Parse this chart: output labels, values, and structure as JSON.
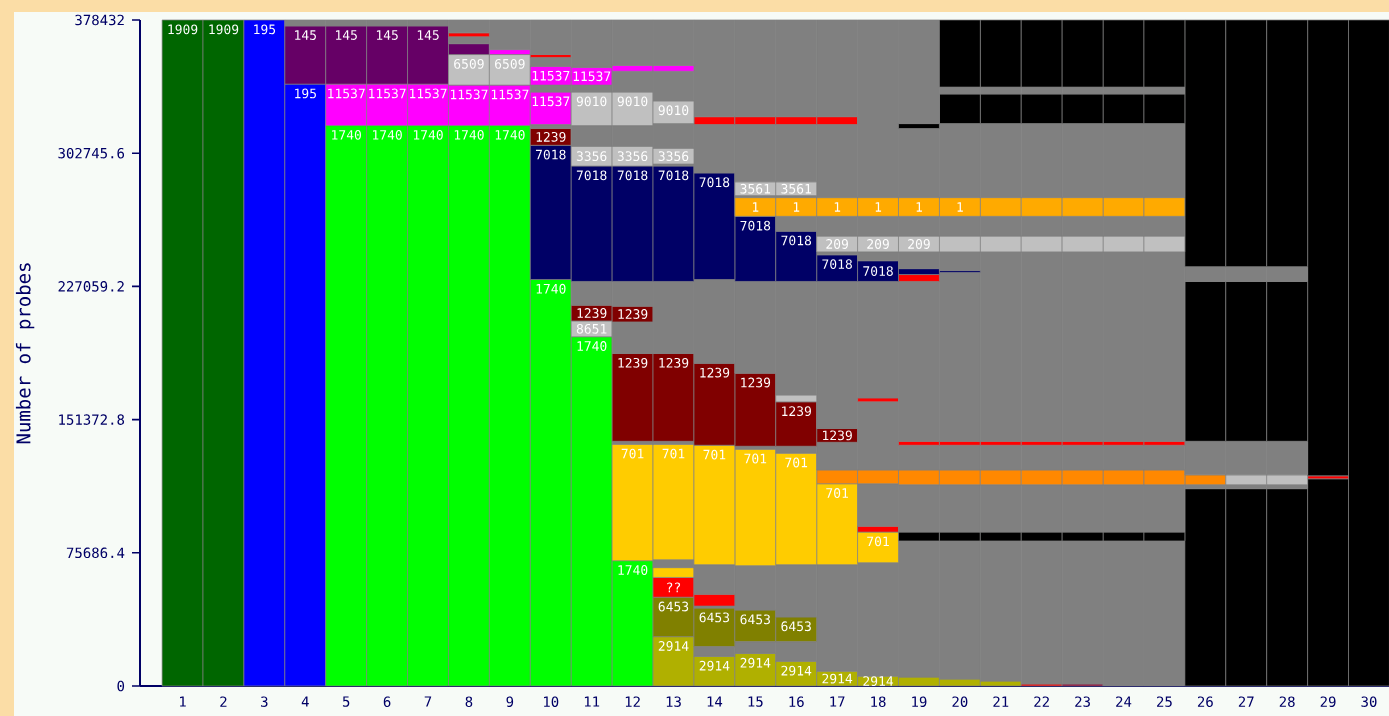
{
  "chart_data": {
    "type": "bar",
    "stacked": true,
    "ylabel": "Number of probes",
    "categories": [
      "1",
      "2",
      "3",
      "4",
      "5",
      "6",
      "7",
      "8",
      "9",
      "10",
      "11",
      "12",
      "13",
      "14",
      "15",
      "16",
      "17",
      "18",
      "19",
      "20",
      "21",
      "22",
      "23",
      "24",
      "25",
      "26",
      "27",
      "28",
      "29",
      "30"
    ],
    "ylim": [
      0,
      378432
    ],
    "yticks": [
      0,
      75686.4,
      151372.8,
      227059.2,
      302745.6,
      378432
    ],
    "series": [
      {
        "values": [
          378432,
          378432,
          378432,
          341990,
          318444,
          318444,
          318444,
          318444,
          318444,
          230984,
          198467,
          71201,
          28032,
          16819,
          18501,
          14016,
          8410,
          5606,
          5046,
          3924,
          2803,
          1121,
          1121,
          82414,
          82414,
          112128,
          112128,
          112128,
          117734,
          378432
        ],
        "colors": [
          "#006600",
          "#006600",
          "#0000ff",
          "#0000ff",
          "#00ff00",
          "#00ff00",
          "#00ff00",
          "#00ff00",
          "#00ff00",
          "#00ff00",
          "#00ff00",
          "#00ff00",
          "#b0b000",
          "#b0b000",
          "#b0b000",
          "#b0b000",
          "#b0b000",
          "#b0b000",
          "#b0b000",
          "#b0b000",
          "#b0b000",
          "#ff0000",
          "#990033",
          "#808080",
          "#808080",
          "#000000",
          "#000000",
          "#000000",
          "#000000",
          "#000000"
        ]
      },
      {
        "values": [
          null,
          null,
          null,
          33078,
          23547,
          23547,
          23547,
          22986,
          22986,
          76247,
          8970,
          66156,
          22426,
          5606,
          6728,
          11213,
          60549,
          64474,
          77368,
          78490,
          79611,
          81293,
          81293,
          5046,
          5046,
          2243,
          2243,
          2243,
          1682,
          null
        ],
        "colors": [
          null,
          null,
          null,
          "#660066",
          "#ff00ff",
          "#ff00ff",
          "#ff00ff",
          "#ff00ff",
          "#ff00ff",
          "#000066",
          "#c0c0c0",
          "#ffcc00",
          "#808000",
          "#808080",
          "#808080",
          "#808080",
          "#808080",
          "#808080",
          "#808080",
          "#808080",
          "#808080",
          "#808080",
          "#808080",
          "#000000",
          "#000000",
          "#808080",
          "#808080",
          "#808080",
          "#ff0000",
          null
        ]
      },
      {
        "values": [
          null,
          null,
          null,
          3364,
          33078,
          33078,
          33078,
          17380,
          17380,
          9531,
          8970,
          1682,
          11213,
          21865,
          17940,
          14016,
          45972,
          17380,
          5046,
          5046,
          5046,
          5046,
          5046,
          26910,
          26910,
          5606,
          5606,
          5606,
          259016,
          null
        ],
        "colors": [
          null,
          null,
          null,
          "#808080",
          "#660066",
          "#660066",
          "#660066",
          "#c0c0c0",
          "#c0c0c0",
          "#800000",
          "#800000",
          "#808080",
          "#ff0000",
          "#808000",
          "#808000",
          "#808000",
          "#ffcc00",
          "#ffcc00",
          "#000000",
          "#000000",
          "#000000",
          "#000000",
          "#000000",
          "#808080",
          "#808080",
          "#ff8800",
          "#c0c0c0",
          "#c0c0c0",
          "#000000",
          null
        ]
      },
      {
        "values": [
          null,
          null,
          null,
          null,
          3363,
          3363,
          3363,
          6167,
          2803,
          2243,
          13455,
          49897,
          5606,
          1121,
          25229,
          29714,
          7849,
          3364,
          26910,
          26910,
          26910,
          26910,
          26910,
          8410,
          8410,
          19062,
          19062,
          19062,
          null,
          null
        ],
        "colors": [
          null,
          null,
          null,
          null,
          "#808080",
          "#808080",
          "#808080",
          "#660066",
          "#ff00ff",
          "#808080",
          "#808080",
          "#800000",
          "#ffcc00",
          "#808080",
          "#808080",
          "#808080",
          "#ff8800",
          "#ff0000",
          "#808080",
          "#808080",
          "#808080",
          "#808080",
          "#808080",
          "#ff8800",
          "#ff8800",
          "#808080",
          "#808080",
          "#808080",
          null,
          null
        ]
      },
      {
        "values": [
          null,
          null,
          null,
          null,
          null,
          null,
          null,
          3924,
          16819,
          18501,
          65595,
          17941,
          4485,
          6728,
          66156,
          63352,
          15698,
          24108,
          8410,
          8410,
          8410,
          8410,
          8410,
          14016,
          14016,
          90824,
          90824,
          90824,
          null,
          null
        ],
        "colors": [
          null,
          null,
          null,
          null,
          null,
          null,
          null,
          "#808080",
          "#808080",
          "#ff00ff",
          "#000066",
          "#808080",
          "#808080",
          "#ff0000",
          "#ffcc00",
          "#ffcc00",
          "#808080",
          "#808080",
          "#ff8800",
          "#ff8800",
          "#ff8800",
          "#ff8800",
          "#ff8800",
          "#808080",
          "#808080",
          "#000000",
          "#000000",
          "#000000",
          null,
          null
        ]
      },
      {
        "values": [
          null,
          null,
          null,
          null,
          null,
          null,
          null,
          2243,
          null,
          3924,
          11213,
          8970,
          65595,
          16819,
          1682,
          3924,
          7849,
          7849,
          14016,
          14016,
          14016,
          14016,
          14016,
          2243,
          2243,
          8410,
          8410,
          8410,
          null,
          null
        ],
        "colors": [
          null,
          null,
          null,
          null,
          null,
          null,
          null,
          "#ff0000",
          null,
          "#808080",
          "#c0c0c0",
          "#800000",
          "#ffcc00",
          "#808080",
          "#808080",
          "#808080",
          "#800000",
          "#ff8800",
          "#808080",
          "#808080",
          "#808080",
          "#808080",
          "#808080",
          "#ff0000",
          "#ff0000",
          "#808080",
          "#808080",
          "#808080",
          null,
          null
        ]
      },
      {
        "values": [
          null,
          null,
          null,
          null,
          null,
          null,
          null,
          7288,
          null,
          10652,
          11773,
          14016,
          1682,
          67837,
          41487,
          25229,
          83535,
          38684,
          2243,
          2243,
          2243,
          2243,
          2243,
          107643,
          107643,
          140159,
          140159,
          140159,
          null,
          null
        ],
        "colors": [
          null,
          null,
          null,
          null,
          null,
          null,
          null,
          "#808080",
          null,
          "#ff00ff",
          "#808080",
          "#808080",
          "#808080",
          "#ffcc00",
          "#800000",
          "#800000",
          "#808080",
          "#808080",
          "#ff0000",
          "#ff0000",
          "#ff0000",
          "#ff0000",
          "#ff0000",
          "#808080",
          "#808080",
          "#000000",
          "#000000",
          "#000000",
          null,
          null
        ]
      },
      {
        "values": [
          null,
          null,
          null,
          null,
          null,
          null,
          null,
          null,
          null,
          5046,
          19062,
          65595,
          49897,
          46533,
          52140,
          3924,
          15137,
          2243,
          90824,
          95870,
          107643,
          107643,
          107643,
          8970,
          8970,
          null,
          null,
          null,
          null,
          null
        ],
        "colors": [
          null,
          null,
          null,
          null,
          null,
          null,
          null,
          null,
          null,
          "#808080",
          "#c0c0c0",
          "#000066",
          "#800000",
          "#800000",
          "#808080",
          "#c0c0c0",
          "#000066",
          "#ff0000",
          "#808080",
          "#808080",
          "#808080",
          "#808080",
          "#808080",
          "#c0c0c0",
          "#c0c0c0",
          null,
          null,
          null,
          null,
          null
        ]
      },
      {
        "values": [
          null,
          null,
          null,
          null,
          null,
          null,
          null,
          null,
          null,
          1682,
          3924,
          11213,
          40927,
          47654,
          37002,
          64474,
          1682,
          66156,
          3924,
          1121,
          8970,
          8970,
          8970,
          11213,
          11213,
          null,
          null,
          null,
          null,
          null
        ],
        "colors": [
          null,
          null,
          null,
          null,
          null,
          null,
          null,
          null,
          null,
          "#ff0000",
          "#808080",
          "#c0c0c0",
          "#808080",
          "#808080",
          "#000066",
          "#808080",
          "#808080",
          "#808080",
          "#ff0000",
          "#000066",
          "#c0c0c0",
          "#c0c0c0",
          "#c0c0c0",
          "#808080",
          "#808080",
          null,
          null,
          null,
          null,
          null
        ]
      },
      {
        "values": [
          null,
          null,
          null,
          null,
          null,
          null,
          null,
          null,
          null,
          19622,
          10092,
          11773,
          65595,
          60549,
          10652,
          28593,
          8970,
          11773,
          3364,
          10652,
          11213,
          11213,
          11213,
          10652,
          10652,
          null,
          null,
          null,
          null,
          null
        ],
        "colors": [
          null,
          null,
          null,
          null,
          null,
          null,
          null,
          null,
          null,
          "#808080",
          "#ff00ff",
          "#808080",
          "#000066",
          "#000066",
          "#ffaa00",
          "#000066",
          "#c0c0c0",
          "#000066",
          "#000066",
          "#808080",
          "#808080",
          "#808080",
          "#808080",
          "#ffaa00",
          "#ffaa00",
          null,
          null,
          null,
          null,
          null
        ]
      },
      {
        "values": [
          null,
          null,
          null,
          null,
          null,
          null,
          null,
          null,
          null,
          null,
          26911,
          19062,
          1121,
          27471,
          1121,
          8410,
          11213,
          5046,
          9531,
          8970,
          10652,
          10652,
          10652,
          42048,
          42048,
          null,
          null,
          null,
          null,
          null
        ],
        "colors": [
          null,
          null,
          null,
          null,
          null,
          null,
          null,
          null,
          null,
          null,
          "#808080",
          "#c0c0c0",
          "#808080",
          "#808080",
          "#808080",
          "#808080",
          "#808080",
          "#808080",
          "#808080",
          "#c0c0c0",
          "#ffaa00",
          "#ffaa00",
          "#ffaa00",
          "#808080",
          "#808080",
          null,
          null,
          null,
          null,
          null
        ]
      },
      {
        "values": [
          null,
          null,
          null,
          null,
          null,
          null,
          null,
          null,
          null,
          null,
          null,
          11773,
          8970,
          4485,
          7849,
          10652,
          10652,
          8970,
          8970,
          11213,
          42048,
          42048,
          42048,
          16819,
          16819,
          null,
          null,
          null,
          null,
          null
        ],
        "colors": [
          null,
          null,
          null,
          null,
          null,
          null,
          null,
          null,
          null,
          null,
          null,
          "#808080",
          "#c0c0c0",
          "#ff0000",
          "#c0c0c0",
          "#ffaa00",
          "#ffaa00",
          "#c0c0c0",
          "#c0c0c0",
          "#808080",
          "#808080",
          "#808080",
          "#808080",
          "#000000",
          "#000000",
          null,
          null,
          null,
          null,
          null
        ]
      },
      {
        "values": [
          null,
          null,
          null,
          null,
          null,
          null,
          null,
          null,
          null,
          null,
          null,
          3364,
          14016,
          54945,
          32517,
          1121,
          41487,
          11213,
          11213,
          10652,
          16819,
          16819,
          16819,
          3924,
          3924,
          null,
          null,
          null,
          null,
          null
        ],
        "colors": [
          null,
          null,
          null,
          null,
          null,
          null,
          null,
          null,
          null,
          null,
          null,
          "#ff00ff",
          "#808080",
          "#808080",
          "#808080",
          "#808080",
          "#808080",
          "#808080",
          "#808080",
          "#ffaa00",
          "#000000",
          "#000000",
          "#000000",
          "#808080",
          "#808080",
          null,
          null,
          null,
          null,
          null
        ]
      },
      {
        "values": [
          null,
          null,
          null,
          null,
          null,
          null,
          null,
          null,
          null,
          null,
          null,
          25789,
          12895,
          null,
          4485,
          7849,
          4485,
          10652,
          10652,
          42048,
          3924,
          3924,
          3924,
          38124,
          38124,
          null,
          null,
          null,
          null,
          null
        ],
        "colors": [
          null,
          null,
          null,
          null,
          null,
          null,
          null,
          null,
          null,
          null,
          null,
          "#808080",
          "#c0c0c0",
          null,
          "#ff0000",
          "#c0c0c0",
          "#ff0000",
          "#ffaa00",
          "#ffaa00",
          "#808080",
          "#808080",
          "#808080",
          "#808080",
          "#000000",
          "#000000",
          null,
          null,
          null,
          null,
          null
        ]
      },
      {
        "values": [
          null,
          null,
          null,
          null,
          null,
          null,
          null,
          null,
          null,
          null,
          null,
          null,
          16819,
          null,
          54943,
          32517,
          54944,
          100914,
          39245,
          16819,
          38124,
          38124,
          38124,
          null,
          null,
          null,
          null,
          null,
          null,
          null
        ],
        "colors": [
          null,
          null,
          null,
          null,
          null,
          null,
          null,
          null,
          null,
          null,
          null,
          null,
          "#808080",
          null,
          "#808080",
          "#808080",
          "#808080",
          "#808080",
          "#808080",
          "#000000",
          "#000000",
          "#000000",
          "#000000",
          null,
          null,
          null,
          null,
          null,
          null,
          null
        ]
      },
      {
        "values": [
          null,
          null,
          null,
          null,
          null,
          null,
          null,
          null,
          null,
          null,
          null,
          null,
          3364,
          null,
          null,
          4485,
          null,
          null,
          2803,
          3924,
          null,
          null,
          null,
          null,
          null,
          null,
          null,
          null,
          null,
          null
        ],
        "colors": [
          null,
          null,
          null,
          null,
          null,
          null,
          null,
          null,
          null,
          null,
          null,
          null,
          "#ff00ff",
          null,
          null,
          "#ff0000",
          null,
          null,
          "#000000",
          "#808080",
          null,
          null,
          null,
          null,
          null,
          null,
          null,
          null,
          null,
          null
        ]
      },
      {
        "values": [
          null,
          null,
          null,
          null,
          null,
          null,
          null,
          null,
          null,
          null,
          null,
          null,
          25789,
          null,
          null,
          54943,
          null,
          null,
          58867,
          38124,
          null,
          null,
          null,
          null,
          null,
          null,
          null,
          null,
          null,
          null
        ],
        "colors": [
          null,
          null,
          null,
          null,
          null,
          null,
          null,
          null,
          null,
          null,
          null,
          null,
          "#808080",
          null,
          null,
          "#808080",
          null,
          null,
          "#808080",
          "#000000",
          null,
          null,
          null,
          null,
          null,
          null,
          null,
          null,
          null,
          null
        ]
      }
    ],
    "annotations": [
      {
        "text": "1909",
        "x": "1",
        "y": 378432
      },
      {
        "text": "1909",
        "x": "2",
        "y": 378432
      },
      {
        "text": "195",
        "x": "3",
        "y": 378432
      },
      {
        "text": "195",
        "x": "4",
        "y": 341990
      },
      {
        "text": "145",
        "x": "4",
        "y": 375068
      },
      {
        "text": "1740",
        "x": "5",
        "y": 318444
      },
      {
        "text": "11537",
        "x": "5",
        "y": 341991
      },
      {
        "text": "145",
        "x": "5",
        "y": 375069
      },
      {
        "text": "1740",
        "x": "6",
        "y": 318444
      },
      {
        "text": "11537",
        "x": "6",
        "y": 341991
      },
      {
        "text": "145",
        "x": "6",
        "y": 375069
      },
      {
        "text": "1740",
        "x": "7",
        "y": 318444
      },
      {
        "text": "11537",
        "x": "7",
        "y": 341991
      },
      {
        "text": "145",
        "x": "7",
        "y": 375069
      },
      {
        "text": "1740",
        "x": "8",
        "y": 318444
      },
      {
        "text": "11537",
        "x": "8",
        "y": 341430
      },
      {
        "text": "6509",
        "x": "8",
        "y": 358810
      },
      {
        "text": "1740",
        "x": "9",
        "y": 318444
      },
      {
        "text": "11537",
        "x": "9",
        "y": 341430
      },
      {
        "text": "6509",
        "x": "9",
        "y": 358810
      },
      {
        "text": "1740",
        "x": "10",
        "y": 230984
      },
      {
        "text": "7018",
        "x": "10",
        "y": 307231
      },
      {
        "text": "1239",
        "x": "10",
        "y": 316762
      },
      {
        "text": "11537",
        "x": "10",
        "y": 337506
      },
      {
        "text": "11537",
        "x": "10",
        "y": 352082
      },
      {
        "text": "1740",
        "x": "11",
        "y": 198467
      },
      {
        "text": "8651",
        "x": "11",
        "y": 207437
      },
      {
        "text": "1239",
        "x": "11",
        "y": 216407
      },
      {
        "text": "7018",
        "x": "11",
        "y": 295457
      },
      {
        "text": "3356",
        "x": "11",
        "y": 306670
      },
      {
        "text": "9010",
        "x": "11",
        "y": 337505
      },
      {
        "text": "11537",
        "x": "11",
        "y": 351521
      },
      {
        "text": "1740",
        "x": "12",
        "y": 71201
      },
      {
        "text": "701",
        "x": "12",
        "y": 137357
      },
      {
        "text": "1239",
        "x": "12",
        "y": 188936
      },
      {
        "text": "1239",
        "x": "12",
        "y": 215847
      },
      {
        "text": "7018",
        "x": "12",
        "y": 295458
      },
      {
        "text": "3356",
        "x": "12",
        "y": 306671
      },
      {
        "text": "9010",
        "x": "12",
        "y": 337506
      },
      {
        "text": "2914",
        "x": "13",
        "y": 28032
      },
      {
        "text": "6453",
        "x": "13",
        "y": 50458
      },
      {
        "text": "??",
        "x": "13",
        "y": 61671
      },
      {
        "text": "701",
        "x": "13",
        "y": 137357
      },
      {
        "text": "1239",
        "x": "13",
        "y": 188936
      },
      {
        "text": "7018",
        "x": "13",
        "y": 295458
      },
      {
        "text": "3356",
        "x": "13",
        "y": 305549
      },
      {
        "text": "9010",
        "x": "13",
        "y": 332460
      },
      {
        "text": "2914",
        "x": "14",
        "y": 16819
      },
      {
        "text": "6453",
        "x": "14",
        "y": 44290
      },
      {
        "text": "701",
        "x": "14",
        "y": 136795
      },
      {
        "text": "1239",
        "x": "14",
        "y": 183328
      },
      {
        "text": "7018",
        "x": "14",
        "y": 291531
      },
      {
        "text": "2914",
        "x": "15",
        "y": 18501
      },
      {
        "text": "6453",
        "x": "15",
        "y": 43169
      },
      {
        "text": "701",
        "x": "15",
        "y": 134554
      },
      {
        "text": "1239",
        "x": "15",
        "y": 177723
      },
      {
        "text": "7018",
        "x": "15",
        "y": 266865
      },
      {
        "text": "1",
        "x": "15",
        "y": 277517
      },
      {
        "text": "3561",
        "x": "15",
        "y": 286487
      },
      {
        "text": "2914",
        "x": "16",
        "y": 14016
      },
      {
        "text": "6453",
        "x": "16",
        "y": 39245
      },
      {
        "text": "701",
        "x": "16",
        "y": 132311
      },
      {
        "text": "1239",
        "x": "16",
        "y": 161464
      },
      {
        "text": "7018",
        "x": "16",
        "y": 258455
      },
      {
        "text": "1",
        "x": "16",
        "y": 277517
      },
      {
        "text": "3561",
        "x": "16",
        "y": 286487
      },
      {
        "text": "2914",
        "x": "17",
        "y": 8410
      },
      {
        "text": "701",
        "x": "17",
        "y": 114931
      },
      {
        "text": "1239",
        "x": "17",
        "y": 146327
      },
      {
        "text": "7018",
        "x": "17",
        "y": 244999
      },
      {
        "text": "209",
        "x": "17",
        "y": 255651
      },
      {
        "text": "1",
        "x": "17",
        "y": 277516
      },
      {
        "text": "2914",
        "x": "18",
        "y": 5606
      },
      {
        "text": "701",
        "x": "18",
        "y": 87460
      },
      {
        "text": "7018",
        "x": "18",
        "y": 241637
      },
      {
        "text": "209",
        "x": "18",
        "y": 255653
      },
      {
        "text": "1",
        "x": "18",
        "y": 277518
      },
      {
        "text": "209",
        "x": "19",
        "y": 255652
      },
      {
        "text": "1",
        "x": "19",
        "y": 277517
      },
      {
        "text": "1",
        "x": "20",
        "y": 277517
      }
    ]
  }
}
